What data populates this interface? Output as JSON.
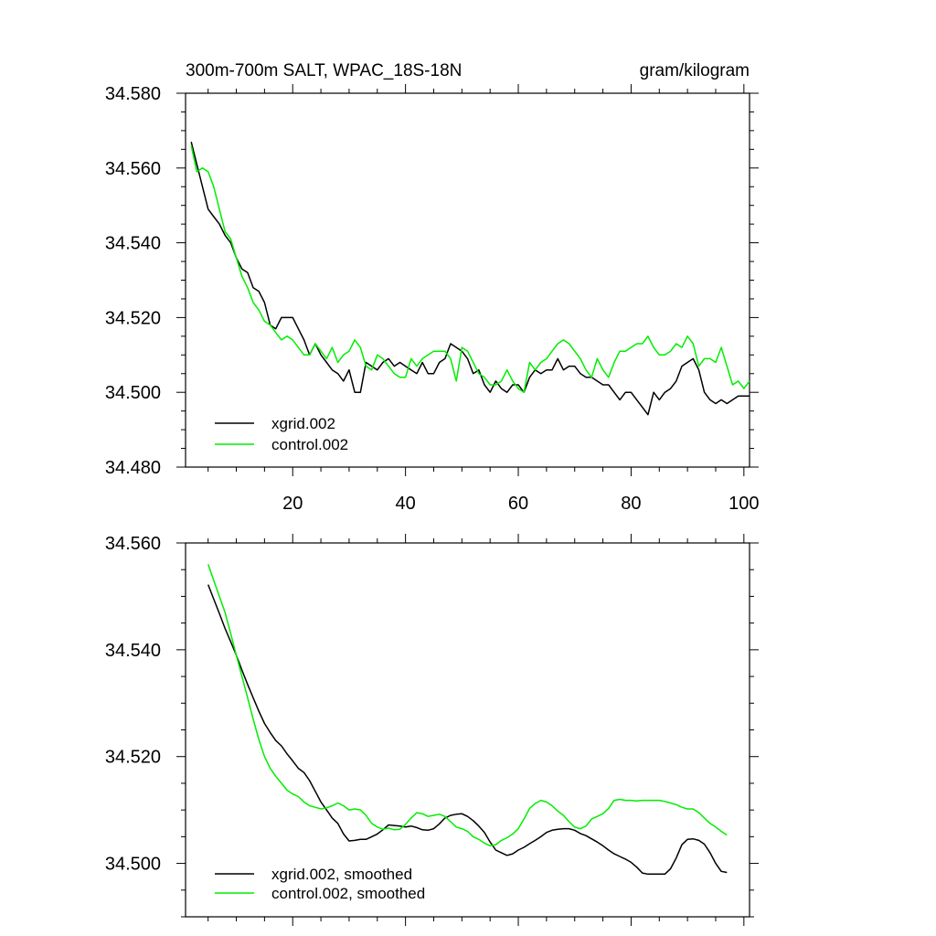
{
  "figure": {
    "title_left": "300m-700m SALT, WPAC_18S-18N",
    "title_right": "gram/kilogram"
  },
  "colors": {
    "xgrid": "#000000",
    "control": "#00ee00",
    "axis": "#000000",
    "background": "#ffffff"
  },
  "chart_data": [
    {
      "type": "line",
      "title": "300m-700m SALT, WPAC_18S-18N",
      "units": "gram/kilogram",
      "xlabel": "",
      "ylabel": "",
      "xlim": [
        1,
        101
      ],
      "ylim": [
        34.48,
        34.58
      ],
      "xticks": [
        20,
        40,
        60,
        80,
        100
      ],
      "xtick_labels": [
        "20",
        "40",
        "60",
        "80",
        "100"
      ],
      "yticks": [
        34.48,
        34.5,
        34.52,
        34.54,
        34.56,
        34.58
      ],
      "ytick_labels": [
        "34.480",
        "34.500",
        "34.520",
        "34.540",
        "34.560",
        "34.580"
      ],
      "legend_position": "bottom-left",
      "series": [
        {
          "name": "xgrid.002",
          "color_key": "xgrid",
          "x_start": 2,
          "x_step": 1,
          "values": [
            34.567,
            34.561,
            34.555,
            34.549,
            34.547,
            34.545,
            34.542,
            34.54,
            34.536,
            34.533,
            34.532,
            34.528,
            34.527,
            34.524,
            34.518,
            34.517,
            34.52,
            34.52,
            34.52,
            34.517,
            34.514,
            34.51,
            34.513,
            34.51,
            34.508,
            34.506,
            34.505,
            34.503,
            34.506,
            34.5,
            34.5,
            34.508,
            34.507,
            34.506,
            34.508,
            34.509,
            34.507,
            34.508,
            34.507,
            34.506,
            34.505,
            34.508,
            34.505,
            34.505,
            34.508,
            34.509,
            34.513,
            34.512,
            34.511,
            34.509,
            34.505,
            34.506,
            34.502,
            34.5,
            34.503,
            34.501,
            34.5,
            34.502,
            34.502,
            34.5,
            34.504,
            34.506,
            34.505,
            34.506,
            34.506,
            34.509,
            34.506,
            34.507,
            34.507,
            34.505,
            34.504,
            34.504,
            34.503,
            34.502,
            34.502,
            34.5,
            34.498,
            34.5,
            34.5,
            34.498,
            34.496,
            34.494,
            34.5,
            34.498,
            34.5,
            34.501,
            34.503,
            34.507,
            34.508,
            34.509,
            34.506,
            34.5,
            34.498,
            34.497,
            34.498,
            34.497,
            34.498,
            34.499,
            34.499,
            34.499
          ]
        },
        {
          "name": "control.002",
          "color_key": "control",
          "x_start": 2,
          "x_step": 1,
          "values": [
            34.566,
            34.559,
            34.56,
            34.559,
            34.555,
            34.549,
            34.543,
            34.541,
            34.536,
            34.531,
            34.528,
            34.524,
            34.522,
            34.519,
            34.518,
            34.516,
            34.514,
            34.515,
            34.514,
            34.512,
            34.51,
            34.51,
            34.513,
            34.511,
            34.509,
            34.512,
            34.508,
            34.51,
            34.511,
            34.514,
            34.512,
            34.507,
            34.506,
            34.51,
            34.509,
            34.507,
            34.505,
            34.504,
            34.504,
            34.509,
            34.507,
            34.509,
            34.51,
            34.511,
            34.511,
            34.511,
            34.509,
            34.503,
            34.512,
            34.511,
            34.508,
            34.505,
            34.504,
            34.502,
            34.502,
            34.503,
            34.506,
            34.503,
            34.501,
            34.5,
            34.508,
            34.506,
            34.508,
            34.509,
            34.511,
            34.513,
            34.514,
            34.513,
            34.511,
            34.509,
            34.506,
            34.504,
            34.509,
            34.506,
            34.504,
            34.508,
            34.511,
            34.511,
            34.512,
            34.513,
            34.513,
            34.515,
            34.512,
            34.51,
            34.51,
            34.511,
            34.513,
            34.512,
            34.515,
            34.513,
            34.507,
            34.509,
            34.509,
            34.508,
            34.512,
            34.507,
            34.502,
            34.503,
            34.501,
            34.503
          ]
        }
      ]
    },
    {
      "type": "line",
      "title": "",
      "xlabel": "",
      "ylabel": "",
      "xlim": [
        1,
        101
      ],
      "ylim": [
        34.49,
        34.56
      ],
      "xticks": [
        20,
        40,
        60,
        80,
        100
      ],
      "xtick_labels": [],
      "yticks": [
        34.5,
        34.52,
        34.54,
        34.56
      ],
      "ytick_labels": [
        "34.500",
        "34.520",
        "34.540",
        "34.560"
      ],
      "legend_position": "bottom-left",
      "series": [
        {
          "name": "xgrid.002, smoothed",
          "color_key": "xgrid",
          "x_start": 5,
          "x_step": 1,
          "values": [
            34.5522,
            34.5495,
            34.5468,
            34.544,
            34.5415,
            34.539,
            34.5362,
            34.5335,
            34.531,
            34.5285,
            34.5262,
            34.5245,
            34.523,
            34.522,
            34.5205,
            34.5192,
            34.5178,
            34.517,
            34.5155,
            34.5135,
            34.5115,
            34.51,
            34.5085,
            34.5075,
            34.5055,
            34.5042,
            34.5043,
            34.5045,
            34.5045,
            34.505,
            34.5055,
            34.5063,
            34.5072,
            34.5071,
            34.507,
            34.5068,
            34.507,
            34.5067,
            34.5063,
            34.5062,
            34.5065,
            34.5074,
            34.5085,
            34.509,
            34.5092,
            34.5093,
            34.5088,
            34.508,
            34.507,
            34.5058,
            34.504,
            34.5025,
            34.502,
            34.5015,
            34.5018,
            34.5025,
            34.503,
            34.5037,
            34.5043,
            34.505,
            34.5058,
            34.5062,
            34.5064,
            34.5065,
            34.5065,
            34.5062,
            34.5056,
            34.5052,
            34.5046,
            34.504,
            34.5033,
            34.5025,
            34.5018,
            34.5013,
            34.5008,
            34.5002,
            34.4993,
            34.4982,
            34.498,
            34.498,
            34.498,
            34.498,
            34.499,
            34.501,
            34.5035,
            34.5045,
            34.5046,
            34.5043,
            34.5036,
            34.502,
            34.5,
            34.4985,
            34.4983
          ]
        },
        {
          "name": "control.002, smoothed",
          "color_key": "control",
          "x_start": 5,
          "x_step": 1,
          "values": [
            34.556,
            34.553,
            34.55,
            34.547,
            34.543,
            34.539,
            34.535,
            34.531,
            34.527,
            34.5232,
            34.52,
            34.5178,
            34.5163,
            34.515,
            34.5137,
            34.513,
            34.5125,
            34.5115,
            34.5108,
            34.5105,
            34.5102,
            34.5104,
            34.5108,
            34.5113,
            34.5108,
            34.51,
            34.5102,
            34.51,
            34.509,
            34.5075,
            34.5068,
            34.5064,
            34.5066,
            34.5063,
            34.5064,
            34.5073,
            34.5085,
            34.5095,
            34.5093,
            34.5088,
            34.509,
            34.5092,
            34.5088,
            34.5078,
            34.5068,
            34.5065,
            34.506,
            34.505,
            34.5045,
            34.5038,
            34.5033,
            34.5035,
            34.5043,
            34.5048,
            34.5055,
            34.5065,
            34.5083,
            34.5103,
            34.5112,
            34.5118,
            34.5115,
            34.5108,
            34.5098,
            34.509,
            34.5078,
            34.5068,
            34.5065,
            34.507,
            34.5083,
            34.5088,
            34.5093,
            34.5103,
            34.5118,
            34.512,
            34.5118,
            34.5118,
            34.5117,
            34.5118,
            34.5118,
            34.5118,
            34.5118,
            34.5116,
            34.5113,
            34.511,
            34.5105,
            34.5102,
            34.5102,
            34.5095,
            34.5085,
            34.5075,
            34.5068,
            34.506,
            34.5053
          ]
        }
      ]
    }
  ]
}
